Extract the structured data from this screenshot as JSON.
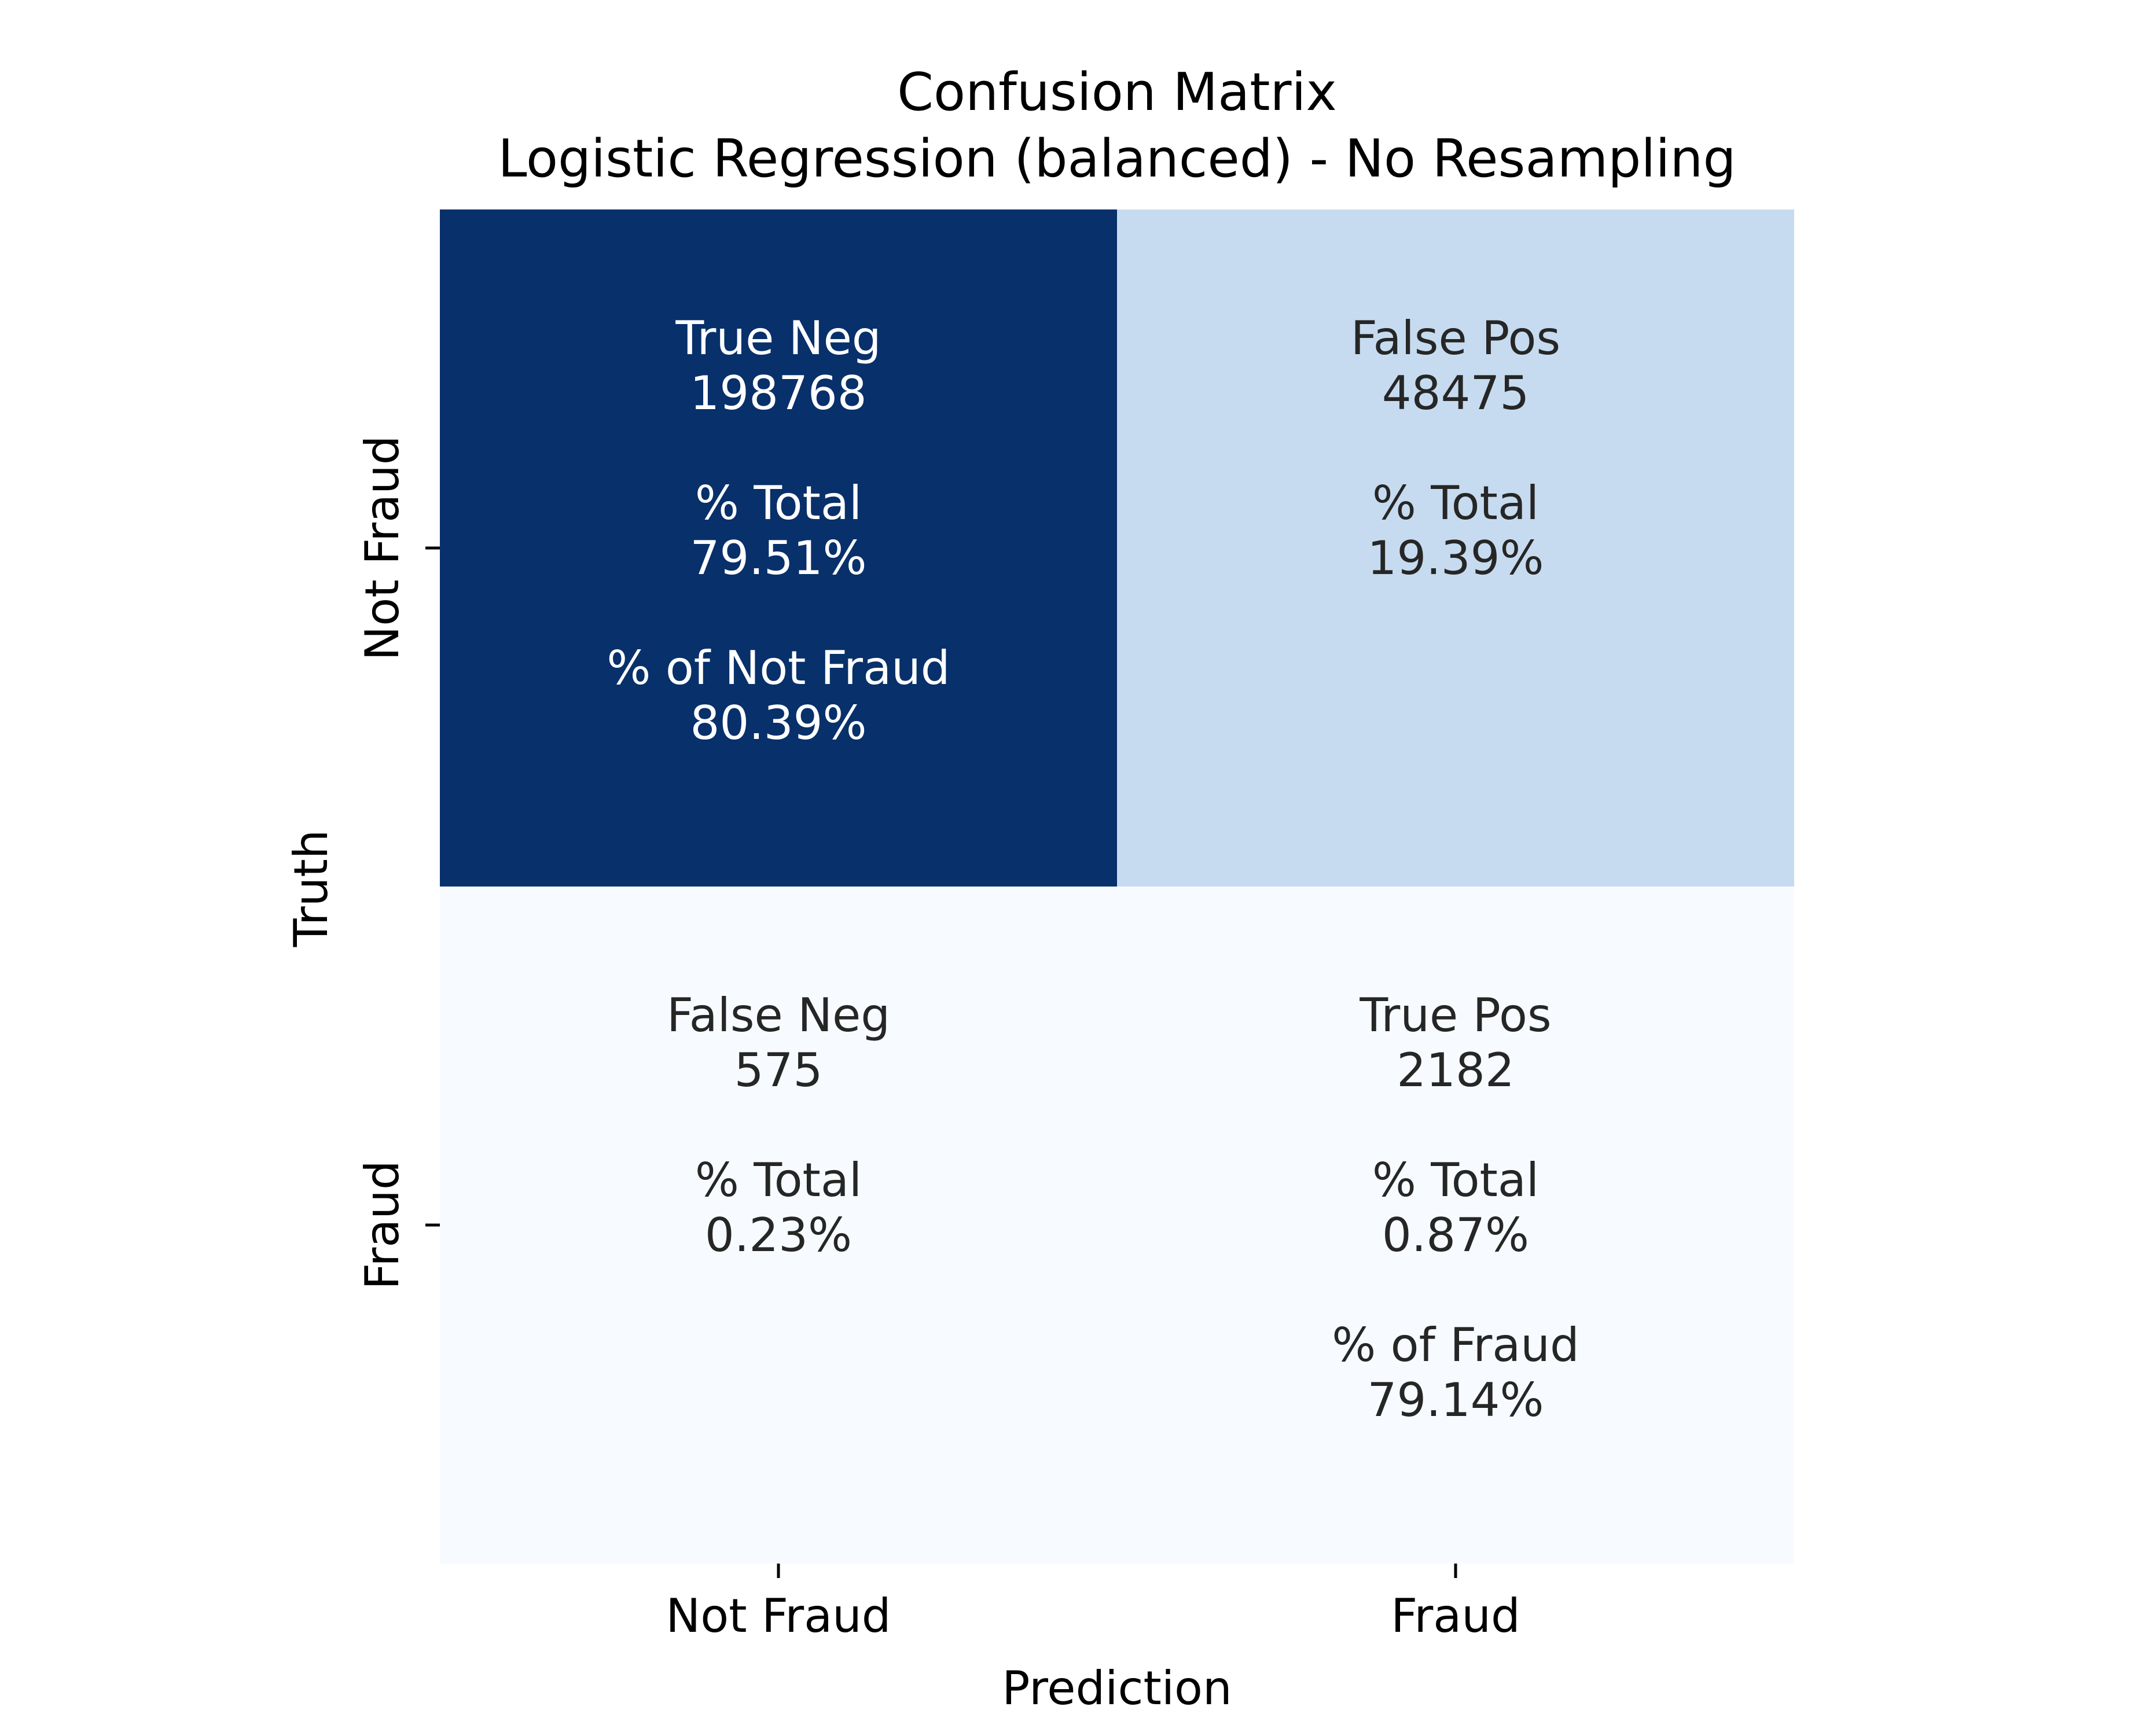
{
  "chart_data": {
    "type": "heatmap",
    "title": "Confusion Matrix",
    "subtitle": "Logistic Regression (balanced) - No Resampling",
    "xlabel": "Prediction",
    "ylabel": "Truth",
    "x_categories": [
      "Not Fraud",
      "Fraud"
    ],
    "y_categories": [
      "Not Fraud",
      "Fraud"
    ],
    "colormap": "Blues",
    "colorbar": false,
    "cells": [
      {
        "row": 0,
        "col": 0,
        "label": "True Neg",
        "count": 198768,
        "total_label": "% Total",
        "total_pct": "79.51%",
        "class_label": "% of Not Fraud",
        "class_pct": "80.39%",
        "color": "#08306b",
        "text_color": "#ffffff"
      },
      {
        "row": 0,
        "col": 1,
        "label": "False Pos",
        "count": 48475,
        "total_label": "% Total",
        "total_pct": "19.39%",
        "class_label": "",
        "class_pct": "",
        "color": "#c6dbef",
        "text_color": "#262626"
      },
      {
        "row": 1,
        "col": 0,
        "label": "False Neg",
        "count": 575,
        "total_label": "% Total",
        "total_pct": "0.23%",
        "class_label": "",
        "class_pct": "",
        "color": "#f7fbff",
        "text_color": "#262626"
      },
      {
        "row": 1,
        "col": 1,
        "label": "True Pos",
        "count": 2182,
        "total_label": "% Total",
        "total_pct": "0.87%",
        "class_label": "% of Fraud",
        "class_pct": "79.14%",
        "color": "#f7fbff",
        "text_color": "#262626"
      }
    ]
  }
}
